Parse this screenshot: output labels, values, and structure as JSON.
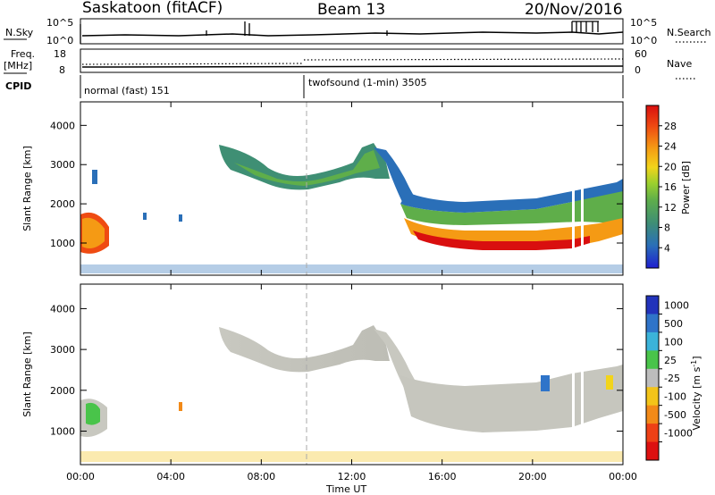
{
  "header": {
    "radar_title": "Saskatoon (fitACF)",
    "beam": "Beam 13",
    "date": "20/Nov/2016"
  },
  "top_panels": {
    "nsky_label": "N.Sky",
    "nsky_ticks": [
      "10^5",
      "10^0"
    ],
    "nsearch_label": "N.Search",
    "nsearch_ticks": [
      "10^5",
      "10^0"
    ],
    "freq_label_1": "Freq.",
    "freq_label_2": "[MHz]",
    "freq_ticks": [
      "18",
      "8"
    ],
    "nave_label": "Nave",
    "nave_ticks": [
      "60",
      "0"
    ],
    "cpid_label": "CPID",
    "cpid_segments": [
      "normal (fast) 151",
      "twofsound (1-min) 3505"
    ]
  },
  "chart_data": [
    {
      "type": "heatmap",
      "panel": "power",
      "ylabel": "Slant Range [km]",
      "yticks": [
        "1000",
        "2000",
        "3000",
        "4000"
      ],
      "ylim": [
        180,
        4600
      ],
      "xlim": [
        0,
        24
      ],
      "colorbar_label": "Power [dB]",
      "colorbar_ticks": [
        "28",
        "24",
        "20",
        "16",
        "12",
        "8",
        "4"
      ],
      "colorscale": [
        "#1f1fcf",
        "#2a6fb8",
        "#3f8f74",
        "#5fae4a",
        "#9bd02e",
        "#f2d41b",
        "#f59a14",
        "#ef4b12",
        "#d90f0f"
      ],
      "echo_bands": [
        {
          "t": [
            0.0,
            1.0
          ],
          "range": [
            900,
            1450
          ],
          "power": 20
        },
        {
          "t": [
            6.5,
            13.5
          ],
          "range": [
            2600,
            3400
          ],
          "power": 12
        },
        {
          "t": [
            13.5,
            22.0
          ],
          "range": [
            950,
            1700
          ],
          "power": 26
        },
        {
          "t": [
            13.5,
            24.0
          ],
          "range": [
            1700,
            2300
          ],
          "power": 12
        }
      ]
    },
    {
      "type": "heatmap",
      "panel": "velocity",
      "ylabel": "Slant Range [km]",
      "yticks": [
        "1000",
        "2000",
        "3000",
        "4000"
      ],
      "ylim": [
        180,
        4600
      ],
      "xlim": [
        0,
        24
      ],
      "colorbar_label": "Velocity [m s",
      "colorbar_ticks": [
        "1000",
        "500",
        "100",
        "25",
        "-25",
        "-100",
        "-500",
        "-1000"
      ],
      "colorscale": [
        "#2233bb",
        "#2f74c9",
        "#3bb3d9",
        "#49c44a",
        "#bdbdbd",
        "#f3c419",
        "#f28a18",
        "#ee4016",
        "#dd1010"
      ],
      "echo_bands": [
        {
          "t": [
            0.0,
            1.0
          ],
          "range": [
            900,
            1500
          ],
          "velocity": 50
        },
        {
          "t": [
            6.5,
            13.5
          ],
          "range": [
            2600,
            3400
          ],
          "velocity": 0
        },
        {
          "t": [
            13.5,
            22.0
          ],
          "range": [
            950,
            2200
          ],
          "velocity": 0
        }
      ]
    }
  ],
  "xaxis": {
    "ticks": [
      "00:00",
      "04:00",
      "08:00",
      "12:00",
      "16:00",
      "20:00",
      "00:00"
    ],
    "label": "Time UT"
  }
}
